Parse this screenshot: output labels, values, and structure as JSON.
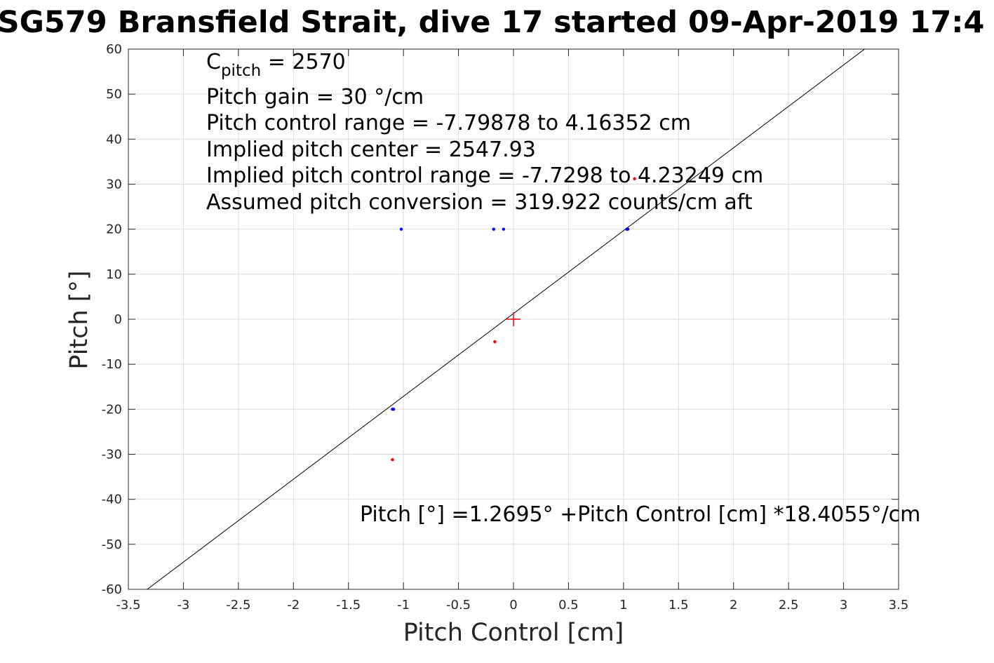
{
  "chart_data": {
    "type": "scatter",
    "title": "SG579 Bransfield Strait, dive 17 started 09-Apr-2019 17:4",
    "xlabel": "Pitch Control [cm]",
    "ylabel": "Pitch [°]",
    "xlim": [
      -3.5,
      3.5
    ],
    "ylim": [
      -60,
      60
    ],
    "grid": true,
    "x_ticks": [
      -3.5,
      -3,
      -2.5,
      -2,
      -1.5,
      -1,
      -0.5,
      0,
      0.5,
      1,
      1.5,
      2,
      2.5,
      3,
      3.5
    ],
    "x_tick_labels": [
      "-3.5",
      "-3",
      "-2.5",
      "-2",
      "-1.5",
      "-1",
      "-0.5",
      "0",
      "0.5",
      "1",
      "1.5",
      "2",
      "2.5",
      "3",
      "3.5"
    ],
    "y_ticks": [
      60,
      50,
      40,
      30,
      20,
      10,
      0,
      -10,
      -20,
      -30,
      -40,
      -50,
      -60
    ],
    "y_tick_labels": [
      "60",
      "50",
      "40",
      "30",
      "20",
      "10",
      "0",
      "-10",
      "-20",
      "-30",
      "-40",
      "-50",
      "-60"
    ],
    "series": [
      {
        "color": "#0000ff",
        "points": [
          [
            -1.02,
            20
          ],
          [
            -0.18,
            20
          ],
          [
            -0.09,
            20
          ],
          [
            1.03,
            20
          ],
          [
            1.04,
            20
          ],
          [
            -1.1,
            -20
          ],
          [
            -1.09,
            -20
          ]
        ]
      },
      {
        "color": "#ff0000",
        "points": [
          [
            1.1,
            31.2
          ],
          [
            -0.17,
            -5
          ],
          [
            -1.1,
            -31.2
          ]
        ]
      }
    ],
    "fit_line": {
      "color": "#000000",
      "intercept": 1.2695,
      "slope": 18.4055
    },
    "center_marker": {
      "color": "#ff0000",
      "x": 0,
      "y": 0
    },
    "annotations": {
      "c_pitch_prefix": "C",
      "c_pitch_sub": "pitch",
      "c_pitch_value": " = 2570",
      "pitch_gain": "Pitch gain = 30 °/cm",
      "pitch_control_range": "Pitch control range = -7.79878 to 4.16352 cm",
      "implied_center": "Implied pitch center = 2547.93",
      "implied_range": "Implied pitch control range = -7.7298 to 4.23249 cm",
      "assumed_conversion": "Assumed pitch conversion = 319.922 counts/cm aft",
      "fit_equation": "Pitch [°] =1.2695° +Pitch Control [cm] *18.4055°/cm"
    }
  }
}
